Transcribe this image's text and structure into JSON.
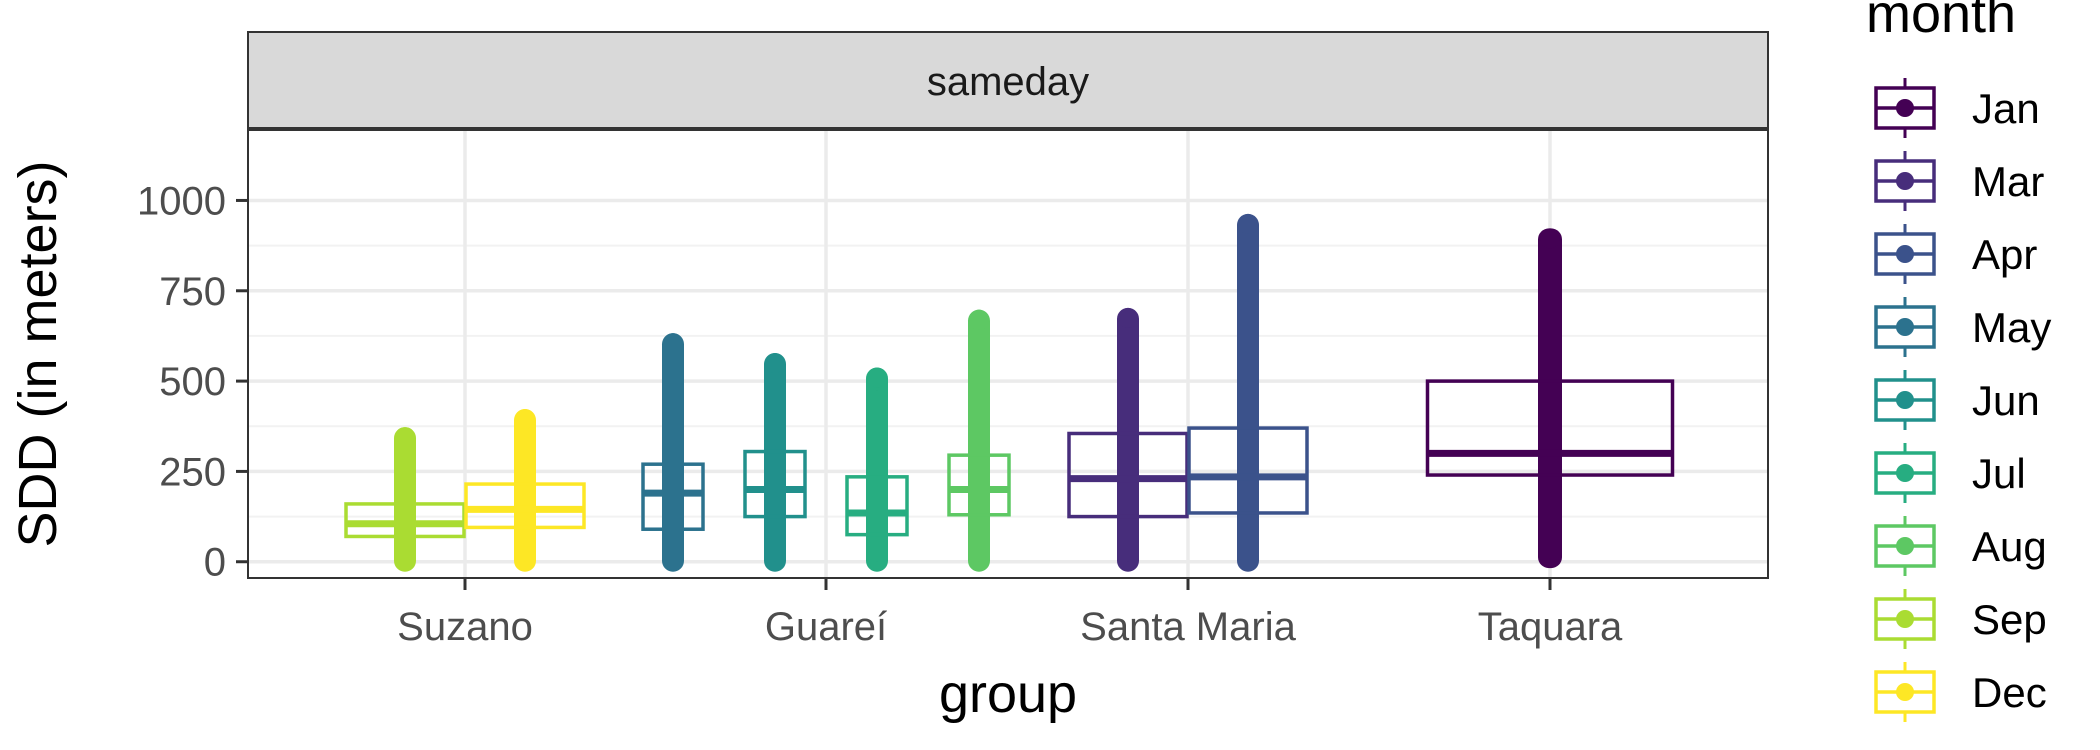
{
  "chart_data": {
    "type": "boxplot",
    "panel_strip": "sameday",
    "xlabel": "group",
    "ylabel": "SDD (in meters)",
    "yticks": [
      0,
      250,
      500,
      750,
      1000
    ],
    "ylim": [
      -45,
      1195
    ],
    "categories": [
      "Suzano",
      "Guareí",
      "Santa Maria",
      "Taquara"
    ],
    "legend": {
      "title": "month",
      "position": "right",
      "entries": [
        {
          "label": "Jan",
          "color": "#440154"
        },
        {
          "label": "Mar",
          "color": "#472D7B"
        },
        {
          "label": "Apr",
          "color": "#3B528B"
        },
        {
          "label": "May",
          "color": "#2C728E"
        },
        {
          "label": "Jun",
          "color": "#21908C"
        },
        {
          "label": "Jul",
          "color": "#27AD81"
        },
        {
          "label": "Aug",
          "color": "#5DC863"
        },
        {
          "label": "Sep",
          "color": "#AADC32"
        },
        {
          "label": "Dec",
          "color": "#FDE725"
        }
      ]
    },
    "series": [
      {
        "group": "Suzano",
        "month": "Sep",
        "color": "#AADC32",
        "q1": 70,
        "median": 105,
        "q3": 160,
        "whisker_low": 0,
        "whisker_high": 295,
        "points_min": 0,
        "points_max": 345
      },
      {
        "group": "Suzano",
        "month": "Dec",
        "color": "#FDE725",
        "q1": 95,
        "median": 145,
        "q3": 215,
        "whisker_low": 0,
        "whisker_high": 395,
        "points_min": 0,
        "points_max": 395
      },
      {
        "group": "Guareí",
        "month": "May",
        "color": "#2C728E",
        "q1": 90,
        "median": 190,
        "q3": 270,
        "whisker_low": 0,
        "whisker_high": 540,
        "points_min": 0,
        "points_max": 605
      },
      {
        "group": "Guareí",
        "month": "Jun",
        "color": "#21908C",
        "q1": 125,
        "median": 200,
        "q3": 305,
        "whisker_low": 0,
        "whisker_high": 550,
        "points_min": 0,
        "points_max": 550
      },
      {
        "group": "Guareí",
        "month": "Jul",
        "color": "#27AD81",
        "q1": 75,
        "median": 135,
        "q3": 235,
        "whisker_low": 0,
        "whisker_high": 475,
        "points_min": 0,
        "points_max": 510
      },
      {
        "group": "Guareí",
        "month": "Aug",
        "color": "#5DC863",
        "q1": 130,
        "median": 200,
        "q3": 295,
        "whisker_low": 0,
        "whisker_high": 540,
        "points_min": 0,
        "points_max": 670
      },
      {
        "group": "Santa Maria",
        "month": "Mar",
        "color": "#472D7B",
        "q1": 125,
        "median": 230,
        "q3": 355,
        "whisker_low": 0,
        "whisker_high": 600,
        "points_min": 0,
        "points_max": 675
      },
      {
        "group": "Santa Maria",
        "month": "Apr",
        "color": "#3B528B",
        "q1": 135,
        "median": 235,
        "q3": 370,
        "whisker_low": 0,
        "whisker_high": 720,
        "points_min": 0,
        "points_max": 935
      },
      {
        "group": "Taquara",
        "month": "Jan",
        "color": "#440154",
        "q1": 240,
        "median": 300,
        "q3": 500,
        "whisker_low": 10,
        "whisker_high": 800,
        "points_min": 10,
        "points_max": 895
      }
    ]
  }
}
